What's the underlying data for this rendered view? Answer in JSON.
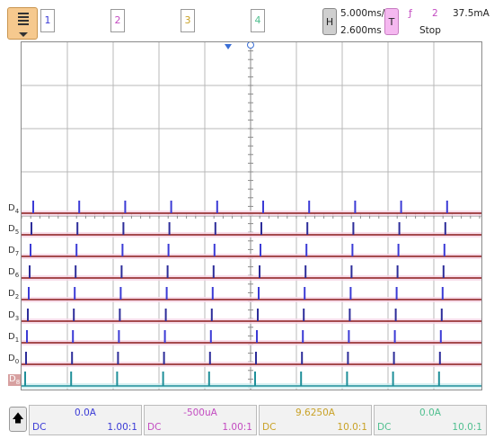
{
  "toolbar": {
    "channels": [
      {
        "label": "1",
        "color": "#3b3bd6"
      },
      {
        "label": "2",
        "color": "#c34bc1"
      },
      {
        "label": "3",
        "color": "#c9a227"
      },
      {
        "label": "4",
        "color": "#4fbf8f"
      }
    ],
    "h_button": "H",
    "timebase": "5.000ms/",
    "delay": "2.600ms",
    "t_button": "T",
    "trigger_edge_glyph": "ƒ",
    "trigger_source": "2",
    "trigger_level": "37.5mA",
    "run_state": "Stop"
  },
  "plot": {
    "channel_labels": [
      {
        "base": "D",
        "sub": "4"
      },
      {
        "base": "D",
        "sub": "5"
      },
      {
        "base": "D",
        "sub": "7"
      },
      {
        "base": "D",
        "sub": "6"
      },
      {
        "base": "D",
        "sub": "2"
      },
      {
        "base": "D",
        "sub": "3"
      },
      {
        "base": "D",
        "sub": "1"
      },
      {
        "base": "D",
        "sub": "0"
      },
      {
        "base": "D",
        "sub": "8"
      }
    ]
  },
  "bottom": {
    "channels": [
      {
        "value": "0.0A",
        "coupling": "DC",
        "probe": "1.00:1",
        "color": "#3b3bd6"
      },
      {
        "value": "-500uA",
        "coupling": "DC",
        "probe": "1.00:1",
        "color": "#c34bc1"
      },
      {
        "value": "9.6250A",
        "coupling": "DC",
        "probe": "10.0:1",
        "color": "#c9a227"
      },
      {
        "value": "0.0A",
        "coupling": "DC",
        "probe": "10.0:1",
        "color": "#4fbf8f"
      }
    ]
  }
}
